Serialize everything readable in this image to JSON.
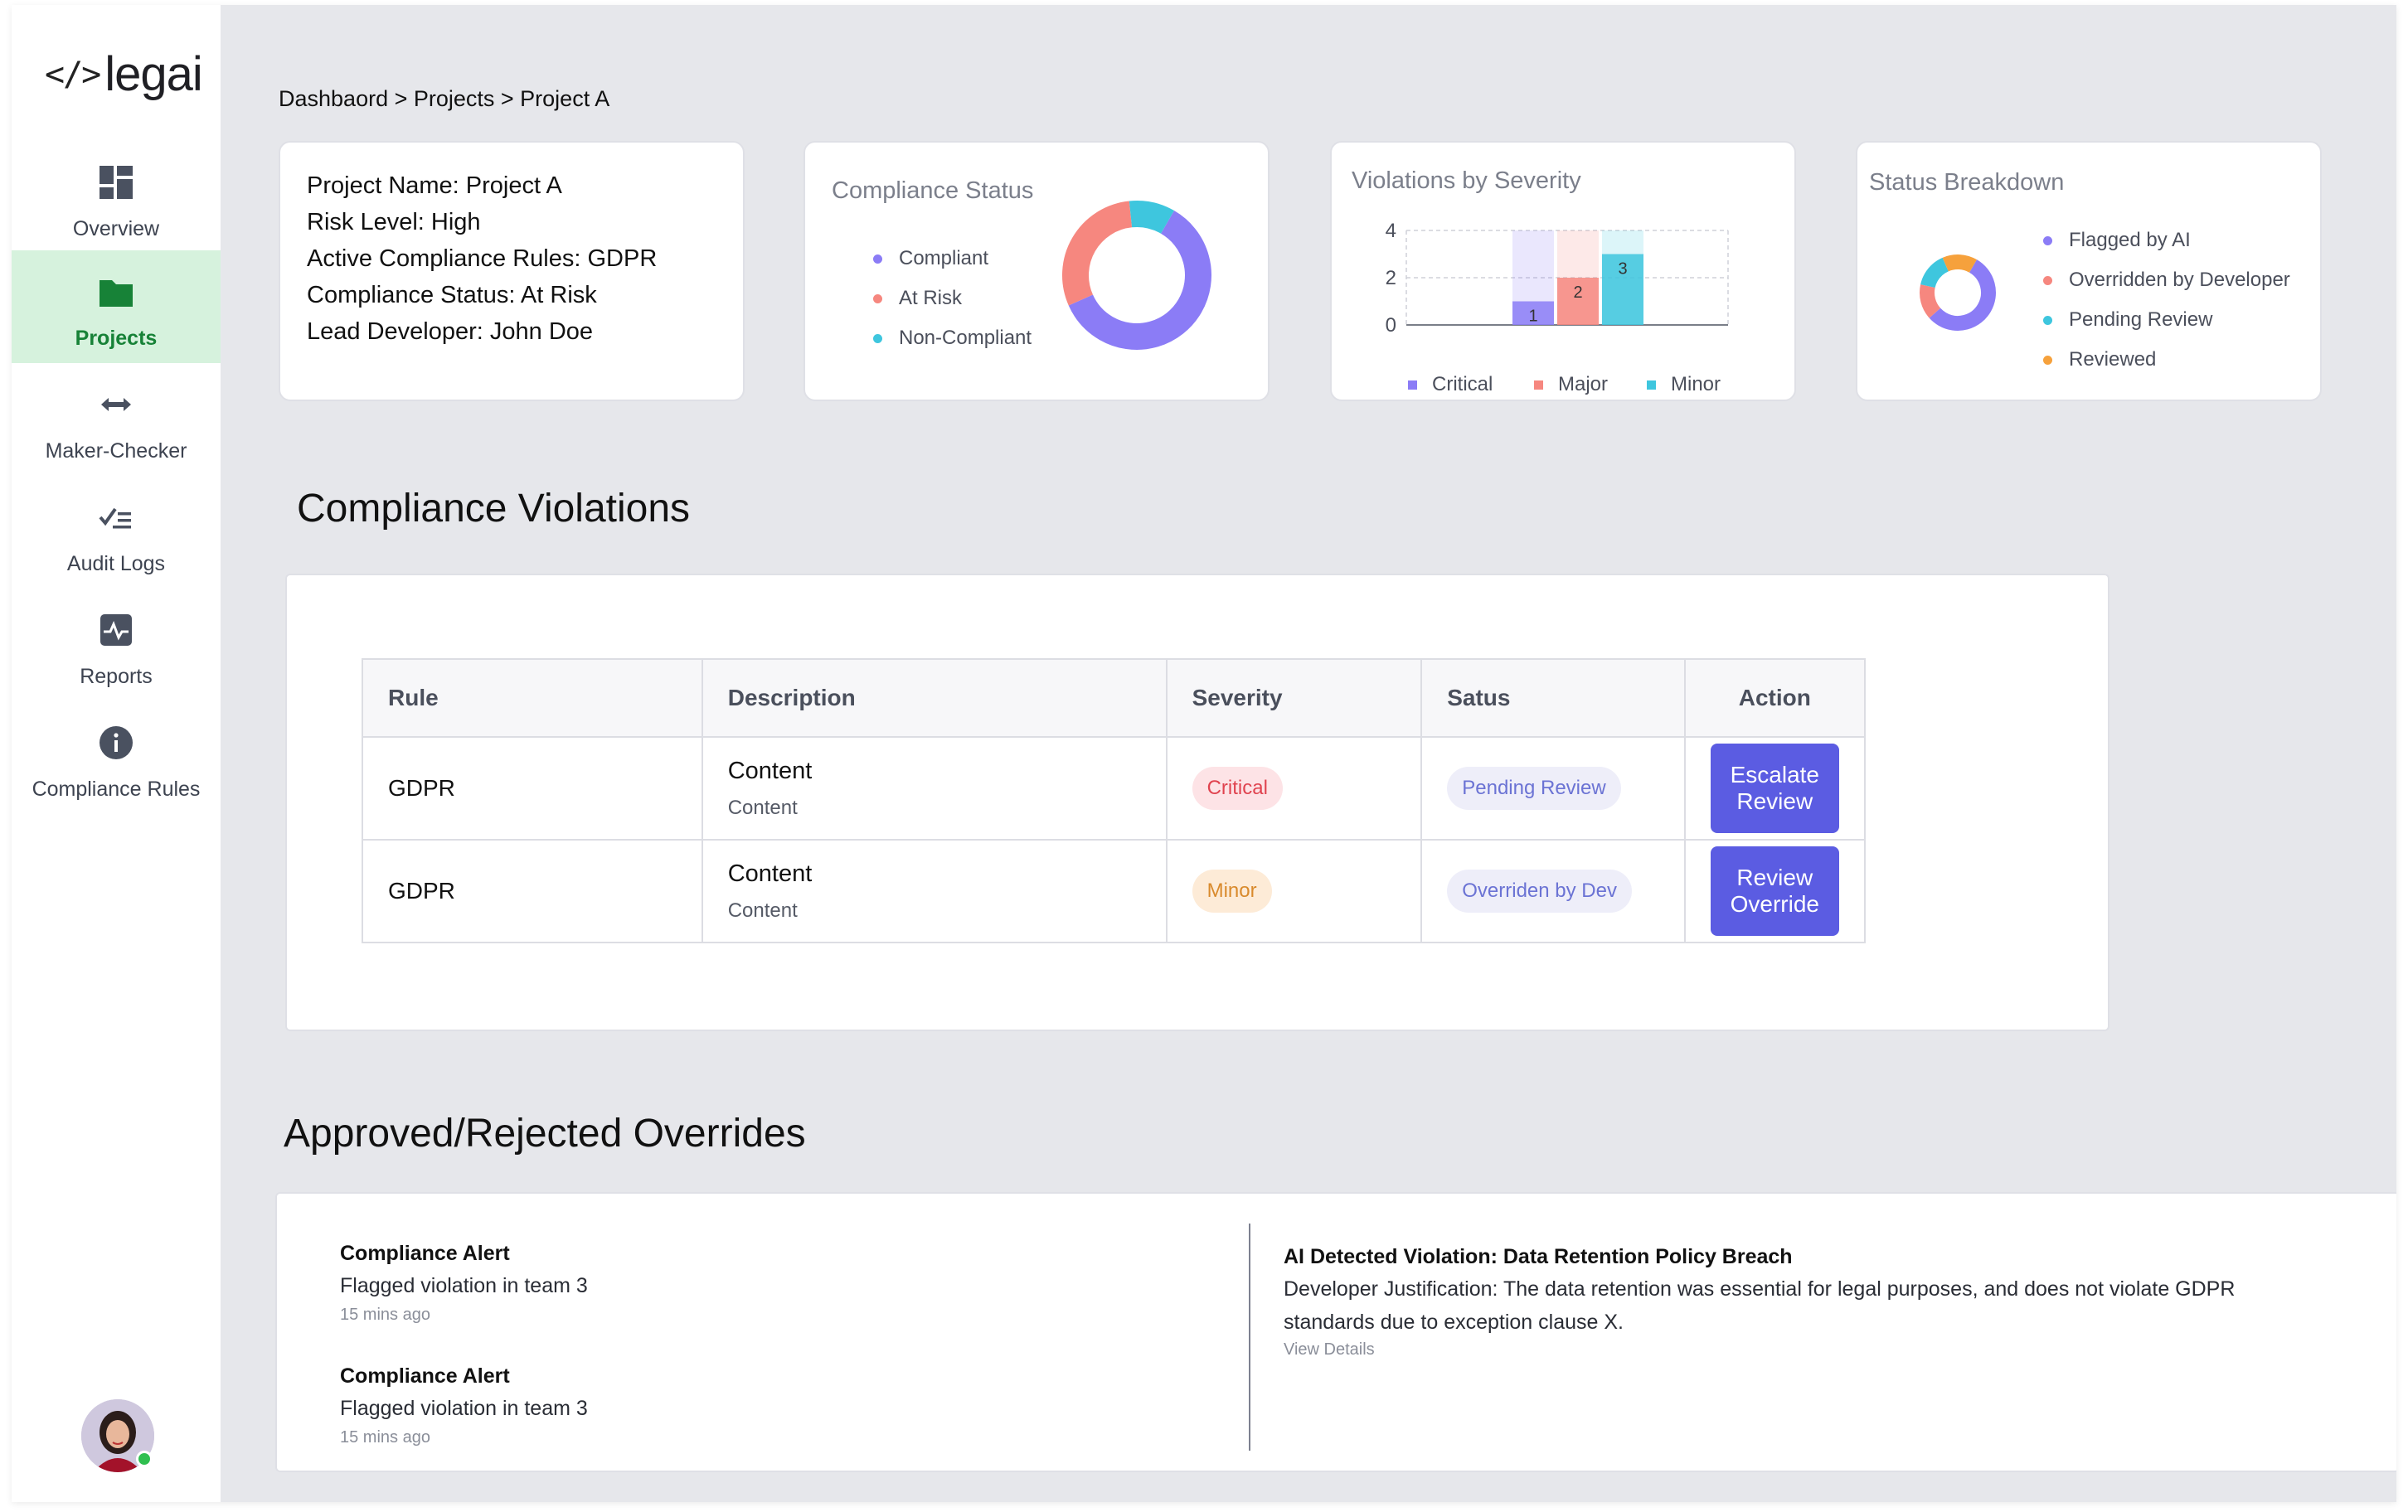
{
  "app": {
    "logo_mark": "</>",
    "logo_text": "legai",
    "brand_color": "#5b5ce2",
    "active_nav_color": "#178237"
  },
  "sidebar": {
    "items": [
      {
        "label": "Overview",
        "icon": "dashboard-icon",
        "active": false
      },
      {
        "label": "Projects",
        "icon": "folder-icon",
        "active": true
      },
      {
        "label": "Maker-Checker",
        "icon": "swap-arrows-icon",
        "active": false
      },
      {
        "label": "Audit Logs",
        "icon": "checklist-icon",
        "active": false
      },
      {
        "label": "Reports",
        "icon": "activity-chart-icon",
        "active": false
      },
      {
        "label": "Compliance Rules",
        "icon": "info-icon",
        "active": false
      }
    ],
    "avatar_status": "online"
  },
  "breadcrumb": "Dashbaord > Projects > Project A",
  "project_info": {
    "name": "Project Name: Project A",
    "risk": "Risk Level: High",
    "rules": "Active Compliance Rules: GDPR",
    "status": "Compliance Status: At Risk",
    "lead": "Lead Developer: John Doe"
  },
  "compliance_status": {
    "title": "Compliance Status",
    "legend": [
      {
        "label": "Compliant",
        "color": "#8b7cf6"
      },
      {
        "label": "At Risk",
        "color": "#f6877f"
      },
      {
        "label": "Non-Compliant",
        "color": "#3ec6de"
      }
    ]
  },
  "violations_by_severity": {
    "title": "Violations by Severity",
    "legend": [
      {
        "label": "Critical",
        "color": "#8b7cf6"
      },
      {
        "label": "Major",
        "color": "#f6877f"
      },
      {
        "label": "Minor",
        "color": "#3ec6de"
      }
    ]
  },
  "status_breakdown": {
    "title": "Status Breakdown",
    "legend": [
      {
        "label": "Flagged by AI",
        "color": "#8b7cf6"
      },
      {
        "label": "Overridden by Developer",
        "color": "#f6877f"
      },
      {
        "label": "Pending Review",
        "color": "#3ec6de"
      },
      {
        "label": "Reviewed",
        "color": "#f6a13c"
      }
    ]
  },
  "chart_data": [
    {
      "type": "pie",
      "title": "Compliance Status",
      "donut": true,
      "categories": [
        "Compliant",
        "At Risk",
        "Non-Compliant"
      ],
      "values": [
        60,
        30,
        10
      ],
      "colors": [
        "#8b7cf6",
        "#f6877f",
        "#3ec6de"
      ]
    },
    {
      "type": "bar",
      "title": "Violations by Severity",
      "categories": [
        "Critical",
        "Major",
        "Minor"
      ],
      "series": [
        {
          "values": [
            1,
            2,
            3
          ]
        }
      ],
      "background_max": 4,
      "colors": [
        "#8b7cf6",
        "#f6877f",
        "#3ec6de"
      ],
      "data_labels": [
        "1",
        "2",
        "3"
      ],
      "ylim": [
        0,
        4
      ],
      "yticks": [
        "0",
        "2",
        "4"
      ],
      "grid": true
    },
    {
      "type": "pie",
      "title": "Status Breakdown",
      "donut": true,
      "categories": [
        "Flagged by AI",
        "Overridden by Developer",
        "Pending Review",
        "Reviewed"
      ],
      "values": [
        55,
        15,
        15,
        15
      ],
      "colors": [
        "#8b7cf6",
        "#f6877f",
        "#3ec6de",
        "#f6a13c"
      ]
    }
  ],
  "violations": {
    "title": "Compliance Violations",
    "headers": [
      "Rule",
      "Description",
      "Severity",
      "Satus",
      "Action"
    ],
    "rows": [
      {
        "rule": "GDPR",
        "desc": "Content",
        "desc_sub": "Content",
        "severity": "Critical",
        "status": "Pending Review",
        "action": "Escalate Review"
      },
      {
        "rule": "GDPR",
        "desc": "Content",
        "desc_sub": "Content",
        "severity": "Minor",
        "status": "Overriden by Dev",
        "action": "Review Override"
      }
    ]
  },
  "overrides": {
    "title": "Approved/Rejected Overrides",
    "alerts": [
      {
        "title": "Compliance Alert",
        "text": "Flagged violation in team 3",
        "time": "15 mins ago"
      },
      {
        "title": "Compliance Alert",
        "text": "Flagged violation in team 3",
        "time": "15 mins ago"
      }
    ],
    "detail": {
      "title": "AI Detected Violation: Data Retention Policy Breach",
      "text": "Developer Justification: The data retention was essential for legal purposes, and does not violate GDPR standards due to exception clause X.",
      "link": "View Details"
    }
  }
}
